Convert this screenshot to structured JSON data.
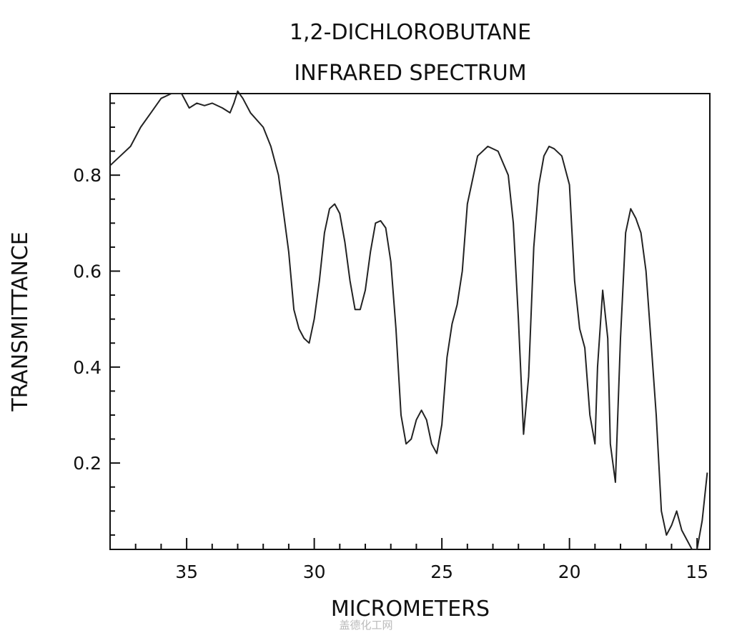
{
  "chart_data": {
    "type": "line",
    "title": "1,2-DICHLOROBUTANE",
    "subtitle": "INFRARED SPECTRUM",
    "xlabel": "MICROMETERS",
    "ylabel": "TRANSMITTANCE",
    "xlim": [
      38,
      14.5
    ],
    "ylim": [
      0.02,
      0.97
    ],
    "x_reversed": true,
    "x_major_ticks": [
      35,
      30,
      25,
      20,
      15
    ],
    "y_major_ticks": [
      0.2,
      0.4,
      0.6,
      0.8
    ],
    "grid": false,
    "series": [
      {
        "x": [
          38.0,
          37.6,
          37.2,
          36.8,
          36.4,
          36.0,
          35.6,
          35.2,
          34.9,
          34.6,
          34.3,
          34.0,
          33.6,
          33.3,
          33.15,
          33.0,
          32.8,
          32.5,
          32.0,
          31.7,
          31.4,
          31.2,
          31.0,
          30.9,
          30.8,
          30.6,
          30.4,
          30.2,
          30.0,
          29.8,
          29.6,
          29.4,
          29.2,
          29.0,
          28.8,
          28.6,
          28.4,
          28.2,
          28.0,
          27.8,
          27.6,
          27.4,
          27.2,
          27.0,
          26.8,
          26.6,
          26.4,
          26.2,
          26.0,
          25.8,
          25.6,
          25.4,
          25.2,
          25.0,
          24.8,
          24.6,
          24.4,
          24.2,
          24.0,
          23.6,
          23.2,
          22.8,
          22.4,
          22.2,
          22.0,
          21.8,
          21.6,
          21.4,
          21.2,
          21.0,
          20.8,
          20.6,
          20.3,
          20.0,
          19.8,
          19.6,
          19.5,
          19.4,
          19.2,
          19.0,
          18.9,
          18.7,
          18.5,
          18.4,
          18.2,
          18.0,
          17.8,
          17.6,
          17.4,
          17.2,
          17.0,
          16.8,
          16.6,
          16.4,
          16.2,
          16.0,
          15.8,
          15.6,
          15.4,
          15.2,
          15.0,
          14.8,
          14.6
        ],
        "y": [
          0.82,
          0.84,
          0.86,
          0.9,
          0.93,
          0.96,
          0.97,
          0.97,
          0.94,
          0.95,
          0.945,
          0.95,
          0.94,
          0.93,
          0.95,
          0.975,
          0.96,
          0.93,
          0.9,
          0.86,
          0.8,
          0.72,
          0.64,
          0.58,
          0.52,
          0.48,
          0.46,
          0.45,
          0.5,
          0.58,
          0.68,
          0.73,
          0.74,
          0.72,
          0.66,
          0.58,
          0.52,
          0.52,
          0.56,
          0.64,
          0.7,
          0.705,
          0.69,
          0.62,
          0.48,
          0.3,
          0.24,
          0.25,
          0.29,
          0.31,
          0.29,
          0.24,
          0.22,
          0.28,
          0.42,
          0.49,
          0.53,
          0.6,
          0.74,
          0.84,
          0.86,
          0.85,
          0.8,
          0.7,
          0.5,
          0.26,
          0.38,
          0.65,
          0.78,
          0.84,
          0.86,
          0.855,
          0.84,
          0.78,
          0.58,
          0.48,
          0.46,
          0.44,
          0.3,
          0.24,
          0.4,
          0.56,
          0.46,
          0.24,
          0.16,
          0.46,
          0.68,
          0.73,
          0.71,
          0.68,
          0.6,
          0.45,
          0.3,
          0.1,
          0.05,
          0.07,
          0.1,
          0.06,
          0.04,
          0.02,
          0.02,
          0.08,
          0.18
        ]
      }
    ]
  },
  "watermark": "盖德化工网"
}
